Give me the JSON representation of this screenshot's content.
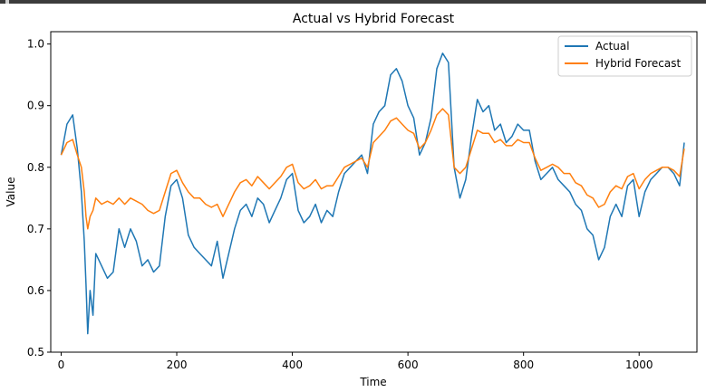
{
  "window": {
    "bar_color": "#3c3c3c"
  },
  "chart_data": {
    "type": "line",
    "title": "Actual vs Hybrid Forecast",
    "xlabel": "Time",
    "ylabel": "Value",
    "xlim": [
      -18,
      1100
    ],
    "ylim": [
      0.5,
      1.02
    ],
    "xticks": [
      0,
      200,
      400,
      600,
      800,
      1000
    ],
    "xtick_labels": [
      "0",
      "200",
      "400",
      "600",
      "800",
      "1000"
    ],
    "yticks": [
      0.5,
      0.6,
      0.7,
      0.8,
      0.9,
      1.0
    ],
    "ytick_labels": [
      "0.5",
      "0.6",
      "0.7",
      "0.8",
      "0.9",
      "1.0"
    ],
    "grid": false,
    "legend_position": "upper right",
    "series": [
      {
        "name": "Actual",
        "color": "#1f77b4",
        "x": [
          0,
          10,
          20,
          28,
          35,
          40,
          43,
          46,
          50,
          55,
          60,
          70,
          80,
          90,
          100,
          110,
          120,
          130,
          140,
          150,
          160,
          170,
          180,
          190,
          200,
          210,
          220,
          230,
          240,
          250,
          260,
          270,
          280,
          290,
          300,
          310,
          320,
          330,
          340,
          350,
          360,
          370,
          380,
          390,
          400,
          410,
          420,
          430,
          440,
          450,
          460,
          470,
          480,
          490,
          500,
          510,
          520,
          530,
          540,
          550,
          560,
          570,
          580,
          590,
          600,
          610,
          620,
          630,
          640,
          650,
          660,
          670,
          680,
          690,
          700,
          710,
          720,
          730,
          740,
          750,
          760,
          770,
          780,
          790,
          800,
          810,
          820,
          830,
          840,
          850,
          860,
          870,
          880,
          890,
          900,
          910,
          920,
          930,
          940,
          950,
          960,
          970,
          980,
          990,
          1000,
          1010,
          1020,
          1030,
          1040,
          1050,
          1060,
          1070,
          1078
        ],
        "y": [
          0.82,
          0.87,
          0.885,
          0.83,
          0.76,
          0.68,
          0.61,
          0.53,
          0.6,
          0.56,
          0.66,
          0.64,
          0.62,
          0.63,
          0.7,
          0.67,
          0.7,
          0.68,
          0.64,
          0.65,
          0.63,
          0.64,
          0.72,
          0.77,
          0.78,
          0.75,
          0.69,
          0.67,
          0.66,
          0.65,
          0.64,
          0.68,
          0.62,
          0.66,
          0.7,
          0.73,
          0.74,
          0.72,
          0.75,
          0.74,
          0.71,
          0.73,
          0.75,
          0.78,
          0.79,
          0.73,
          0.71,
          0.72,
          0.74,
          0.71,
          0.73,
          0.72,
          0.76,
          0.79,
          0.8,
          0.81,
          0.82,
          0.79,
          0.87,
          0.89,
          0.9,
          0.95,
          0.96,
          0.94,
          0.9,
          0.88,
          0.82,
          0.84,
          0.88,
          0.96,
          0.985,
          0.97,
          0.8,
          0.75,
          0.78,
          0.85,
          0.91,
          0.89,
          0.9,
          0.86,
          0.87,
          0.84,
          0.85,
          0.87,
          0.86,
          0.86,
          0.81,
          0.78,
          0.79,
          0.8,
          0.78,
          0.77,
          0.76,
          0.74,
          0.73,
          0.7,
          0.69,
          0.65,
          0.67,
          0.72,
          0.74,
          0.72,
          0.77,
          0.78,
          0.72,
          0.76,
          0.78,
          0.79,
          0.8,
          0.8,
          0.79,
          0.77,
          0.84
        ]
      },
      {
        "name": "Hybrid Forecast",
        "color": "#ff7f0e",
        "x": [
          0,
          10,
          20,
          28,
          35,
          40,
          43,
          46,
          50,
          55,
          60,
          70,
          80,
          90,
          100,
          110,
          120,
          130,
          140,
          150,
          160,
          170,
          180,
          190,
          200,
          210,
          220,
          230,
          240,
          250,
          260,
          270,
          280,
          290,
          300,
          310,
          320,
          330,
          340,
          350,
          360,
          370,
          380,
          390,
          400,
          410,
          420,
          430,
          440,
          450,
          460,
          470,
          480,
          490,
          500,
          510,
          520,
          530,
          540,
          550,
          560,
          570,
          580,
          590,
          600,
          610,
          620,
          630,
          640,
          650,
          660,
          670,
          680,
          690,
          700,
          710,
          720,
          730,
          740,
          750,
          760,
          770,
          780,
          790,
          800,
          810,
          820,
          830,
          840,
          850,
          860,
          870,
          880,
          890,
          900,
          910,
          920,
          930,
          940,
          950,
          960,
          970,
          980,
          990,
          1000,
          1010,
          1020,
          1030,
          1040,
          1050,
          1060,
          1070,
          1078
        ],
        "y": [
          0.82,
          0.84,
          0.845,
          0.82,
          0.8,
          0.76,
          0.72,
          0.7,
          0.72,
          0.73,
          0.75,
          0.74,
          0.745,
          0.74,
          0.75,
          0.74,
          0.75,
          0.745,
          0.74,
          0.73,
          0.725,
          0.73,
          0.76,
          0.79,
          0.795,
          0.775,
          0.76,
          0.75,
          0.75,
          0.74,
          0.735,
          0.74,
          0.72,
          0.74,
          0.76,
          0.775,
          0.78,
          0.77,
          0.785,
          0.775,
          0.765,
          0.775,
          0.785,
          0.8,
          0.805,
          0.775,
          0.765,
          0.77,
          0.78,
          0.765,
          0.77,
          0.77,
          0.785,
          0.8,
          0.805,
          0.81,
          0.815,
          0.8,
          0.84,
          0.85,
          0.86,
          0.875,
          0.88,
          0.87,
          0.86,
          0.855,
          0.83,
          0.84,
          0.86,
          0.885,
          0.895,
          0.885,
          0.8,
          0.79,
          0.8,
          0.83,
          0.86,
          0.855,
          0.855,
          0.84,
          0.845,
          0.835,
          0.835,
          0.845,
          0.84,
          0.84,
          0.815,
          0.795,
          0.8,
          0.805,
          0.8,
          0.79,
          0.79,
          0.775,
          0.77,
          0.755,
          0.75,
          0.735,
          0.74,
          0.76,
          0.77,
          0.765,
          0.785,
          0.79,
          0.765,
          0.78,
          0.79,
          0.795,
          0.8,
          0.8,
          0.795,
          0.785,
          0.83
        ]
      }
    ]
  }
}
